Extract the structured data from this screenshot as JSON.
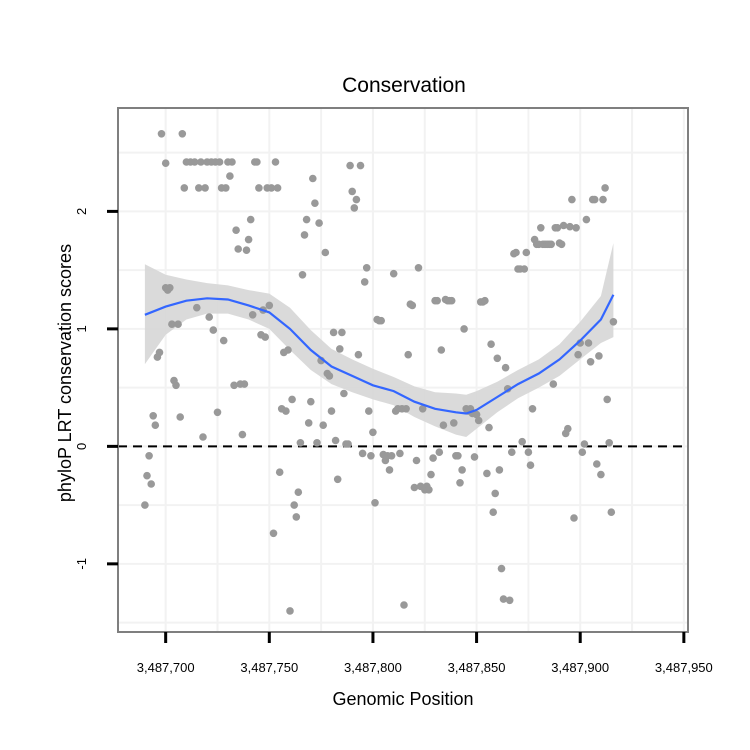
{
  "chart_data": {
    "type": "scatter",
    "title": "Conservation",
    "xlabel": "Genomic Position",
    "ylabel": "phyloP LRT conservation scores",
    "xlim": [
      3487677,
      3487952
    ],
    "ylim": [
      -1.58,
      2.88
    ],
    "x_ticks": [
      3487700,
      3487750,
      3487800,
      3487850,
      3487900,
      3487950
    ],
    "x_tick_labels": [
      "3,487,700",
      "3,487,750",
      "3,487,800",
      "3,487,850",
      "3,487,900",
      "3,487,950"
    ],
    "y_ticks": [
      -1,
      0,
      1,
      2
    ],
    "y_tick_labels": [
      "-1",
      "0",
      "1",
      "2"
    ],
    "reference_line": {
      "y": 0,
      "style": "dashed"
    },
    "grid": true,
    "colors": {
      "points": "#999999",
      "smooth": "#3366ff",
      "band": "#d6d6d6",
      "panel_border": "#7f7f7f",
      "grid": "#f2f2f2"
    },
    "points": [
      [
        3487690,
        -0.5
      ],
      [
        3487691,
        -0.25
      ],
      [
        3487692,
        -0.08
      ],
      [
        3487693,
        -0.32
      ],
      [
        3487694,
        0.26
      ],
      [
        3487695,
        0.18
      ],
      [
        3487696,
        0.76
      ],
      [
        3487697,
        0.8
      ],
      [
        3487698,
        2.66
      ],
      [
        3487700,
        2.41
      ],
      [
        3487700,
        1.35
      ],
      [
        3487701,
        1.33
      ],
      [
        3487702,
        1.35
      ],
      [
        3487703,
        1.04
      ],
      [
        3487704,
        0.56
      ],
      [
        3487705,
        0.52
      ],
      [
        3487706,
        1.04
      ],
      [
        3487707,
        0.25
      ],
      [
        3487708,
        2.66
      ],
      [
        3487709,
        2.2
      ],
      [
        3487710,
        2.42
      ],
      [
        3487712,
        2.42
      ],
      [
        3487714,
        2.42
      ],
      [
        3487715,
        1.18
      ],
      [
        3487716,
        2.2
      ],
      [
        3487717,
        2.42
      ],
      [
        3487718,
        0.08
      ],
      [
        3487719,
        2.2
      ],
      [
        3487720,
        2.42
      ],
      [
        3487721,
        1.1
      ],
      [
        3487722,
        2.42
      ],
      [
        3487723,
        0.99
      ],
      [
        3487724,
        2.42
      ],
      [
        3487725,
        0.29
      ],
      [
        3487726,
        2.42
      ],
      [
        3487727,
        2.2
      ],
      [
        3487728,
        0.9
      ],
      [
        3487729,
        2.2
      ],
      [
        3487730,
        2.42
      ],
      [
        3487731,
        2.3
      ],
      [
        3487732,
        2.42
      ],
      [
        3487733,
        0.52
      ],
      [
        3487734,
        1.84
      ],
      [
        3487735,
        1.68
      ],
      [
        3487736,
        0.53
      ],
      [
        3487737,
        0.1
      ],
      [
        3487738,
        0.53
      ],
      [
        3487739,
        1.67
      ],
      [
        3487740,
        1.76
      ],
      [
        3487741,
        1.93
      ],
      [
        3487742,
        1.12
      ],
      [
        3487743,
        2.42
      ],
      [
        3487744,
        2.42
      ],
      [
        3487745,
        2.2
      ],
      [
        3487746,
        0.95
      ],
      [
        3487747,
        1.16
      ],
      [
        3487748,
        0.93
      ],
      [
        3487749,
        2.2
      ],
      [
        3487750,
        1.2
      ],
      [
        3487751,
        2.2
      ],
      [
        3487752,
        -0.74
      ],
      [
        3487753,
        2.42
      ],
      [
        3487754,
        2.2
      ],
      [
        3487755,
        -0.22
      ],
      [
        3487756,
        0.32
      ],
      [
        3487757,
        0.8
      ],
      [
        3487758,
        0.3
      ],
      [
        3487759,
        0.82
      ],
      [
        3487760,
        -1.4
      ],
      [
        3487761,
        0.4
      ],
      [
        3487762,
        -0.5
      ],
      [
        3487763,
        -0.6
      ],
      [
        3487764,
        -0.39
      ],
      [
        3487765,
        0.03
      ],
      [
        3487766,
        1.46
      ],
      [
        3487767,
        1.8
      ],
      [
        3487768,
        1.93
      ],
      [
        3487769,
        0.2
      ],
      [
        3487770,
        0.38
      ],
      [
        3487771,
        2.28
      ],
      [
        3487772,
        2.07
      ],
      [
        3487773,
        0.03
      ],
      [
        3487774,
        1.9
      ],
      [
        3487775,
        0.73
      ],
      [
        3487776,
        0.18
      ],
      [
        3487777,
        1.65
      ],
      [
        3487778,
        0.62
      ],
      [
        3487779,
        0.6
      ],
      [
        3487780,
        0.3
      ],
      [
        3487781,
        0.97
      ],
      [
        3487782,
        0.05
      ],
      [
        3487783,
        -0.28
      ],
      [
        3487784,
        0.83
      ],
      [
        3487785,
        0.97
      ],
      [
        3487786,
        0.45
      ],
      [
        3487787,
        0.02
      ],
      [
        3487788,
        0.02
      ],
      [
        3487789,
        2.39
      ],
      [
        3487790,
        2.17
      ],
      [
        3487791,
        2.03
      ],
      [
        3487792,
        2.1
      ],
      [
        3487793,
        0.78
      ],
      [
        3487794,
        2.39
      ],
      [
        3487795,
        -0.06
      ],
      [
        3487796,
        1.4
      ],
      [
        3487797,
        1.52
      ],
      [
        3487798,
        0.3
      ],
      [
        3487799,
        -0.08
      ],
      [
        3487800,
        0.12
      ],
      [
        3487801,
        -0.48
      ],
      [
        3487802,
        1.08
      ],
      [
        3487803,
        1.07
      ],
      [
        3487804,
        1.07
      ],
      [
        3487805,
        -0.07
      ],
      [
        3487806,
        -0.12
      ],
      [
        3487807,
        -0.08
      ],
      [
        3487808,
        -0.2
      ],
      [
        3487809,
        -0.08
      ],
      [
        3487810,
        1.47
      ],
      [
        3487811,
        0.3
      ],
      [
        3487812,
        0.32
      ],
      [
        3487813,
        -0.06
      ],
      [
        3487814,
        0.32
      ],
      [
        3487815,
        -1.35
      ],
      [
        3487816,
        0.32
      ],
      [
        3487817,
        0.78
      ],
      [
        3487818,
        1.21
      ],
      [
        3487819,
        1.2
      ],
      [
        3487820,
        -0.35
      ],
      [
        3487821,
        -0.12
      ],
      [
        3487822,
        1.52
      ],
      [
        3487823,
        -0.34
      ],
      [
        3487824,
        0.32
      ],
      [
        3487825,
        -0.37
      ],
      [
        3487826,
        -0.34
      ],
      [
        3487827,
        -0.37
      ],
      [
        3487828,
        -0.24
      ],
      [
        3487829,
        -0.1
      ],
      [
        3487830,
        1.24
      ],
      [
        3487831,
        1.24
      ],
      [
        3487832,
        -0.05
      ],
      [
        3487833,
        0.82
      ],
      [
        3487834,
        0.18
      ],
      [
        3487835,
        1.25
      ],
      [
        3487836,
        1.24
      ],
      [
        3487837,
        1.24
      ],
      [
        3487838,
        1.24
      ],
      [
        3487839,
        0.2
      ],
      [
        3487840,
        -0.08
      ],
      [
        3487841,
        -0.08
      ],
      [
        3487842,
        -0.31
      ],
      [
        3487843,
        -0.2
      ],
      [
        3487844,
        1.0
      ],
      [
        3487845,
        0.32
      ],
      [
        3487846,
        0.3
      ],
      [
        3487847,
        0.32
      ],
      [
        3487848,
        0.28
      ],
      [
        3487849,
        -0.09
      ],
      [
        3487850,
        0.27
      ],
      [
        3487851,
        0.22
      ],
      [
        3487852,
        1.23
      ],
      [
        3487853,
        1.23
      ],
      [
        3487854,
        1.24
      ],
      [
        3487855,
        -0.23
      ],
      [
        3487856,
        0.16
      ],
      [
        3487857,
        0.87
      ],
      [
        3487858,
        -0.56
      ],
      [
        3487859,
        -0.4
      ],
      [
        3487860,
        0.75
      ],
      [
        3487861,
        -0.2
      ],
      [
        3487862,
        -1.04
      ],
      [
        3487863,
        -1.3
      ],
      [
        3487864,
        0.67
      ],
      [
        3487865,
        0.49
      ],
      [
        3487866,
        -1.31
      ],
      [
        3487867,
        -0.05
      ],
      [
        3487868,
        1.64
      ],
      [
        3487869,
        1.65
      ],
      [
        3487870,
        1.51
      ],
      [
        3487871,
        1.51
      ],
      [
        3487872,
        0.04
      ],
      [
        3487873,
        1.51
      ],
      [
        3487874,
        1.65
      ],
      [
        3487875,
        -0.05
      ],
      [
        3487876,
        -0.16
      ],
      [
        3487877,
        0.32
      ],
      [
        3487878,
        1.76
      ],
      [
        3487879,
        1.72
      ],
      [
        3487880,
        1.72
      ],
      [
        3487881,
        1.86
      ],
      [
        3487882,
        1.72
      ],
      [
        3487883,
        1.72
      ],
      [
        3487884,
        1.72
      ],
      [
        3487885,
        1.72
      ],
      [
        3487886,
        1.72
      ],
      [
        3487887,
        0.53
      ],
      [
        3487888,
        1.86
      ],
      [
        3487889,
        1.86
      ],
      [
        3487890,
        1.73
      ],
      [
        3487891,
        1.72
      ],
      [
        3487892,
        1.88
      ],
      [
        3487893,
        0.11
      ],
      [
        3487894,
        0.15
      ],
      [
        3487895,
        1.87
      ],
      [
        3487896,
        2.1
      ],
      [
        3487897,
        -0.61
      ],
      [
        3487898,
        1.86
      ],
      [
        3487899,
        0.78
      ],
      [
        3487900,
        0.88
      ],
      [
        3487901,
        -0.05
      ],
      [
        3487902,
        0.02
      ],
      [
        3487903,
        1.93
      ],
      [
        3487904,
        0.88
      ],
      [
        3487905,
        0.72
      ],
      [
        3487906,
        2.1
      ],
      [
        3487907,
        2.1
      ],
      [
        3487908,
        -0.15
      ],
      [
        3487909,
        0.77
      ],
      [
        3487910,
        -0.24
      ],
      [
        3487911,
        2.1
      ],
      [
        3487912,
        2.2
      ],
      [
        3487913,
        0.4
      ],
      [
        3487914,
        0.03
      ],
      [
        3487915,
        -0.56
      ],
      [
        3487916,
        1.06
      ]
    ],
    "smooth_fit": {
      "x": [
        3487690,
        3487700,
        3487710,
        3487720,
        3487730,
        3487740,
        3487750,
        3487760,
        3487770,
        3487780,
        3487790,
        3487800,
        3487810,
        3487820,
        3487830,
        3487840,
        3487845,
        3487850,
        3487860,
        3487870,
        3487880,
        3487890,
        3487900,
        3487910,
        3487916
      ],
      "y": [
        1.12,
        1.19,
        1.24,
        1.26,
        1.25,
        1.2,
        1.14,
        1.0,
        0.82,
        0.68,
        0.6,
        0.52,
        0.47,
        0.38,
        0.32,
        0.29,
        0.28,
        0.31,
        0.42,
        0.53,
        0.62,
        0.74,
        0.9,
        1.08,
        1.29
      ],
      "lower": [
        0.7,
        0.95,
        1.08,
        1.13,
        1.13,
        1.08,
        1.0,
        0.82,
        0.65,
        0.53,
        0.46,
        0.4,
        0.35,
        0.25,
        0.17,
        0.1,
        0.08,
        0.15,
        0.29,
        0.41,
        0.5,
        0.6,
        0.74,
        0.88,
        0.93
      ],
      "upper": [
        1.55,
        1.46,
        1.42,
        1.39,
        1.37,
        1.33,
        1.3,
        1.18,
        0.99,
        0.83,
        0.74,
        0.66,
        0.59,
        0.51,
        0.46,
        0.45,
        0.44,
        0.47,
        0.55,
        0.65,
        0.74,
        0.87,
        1.06,
        1.28,
        1.73
      ]
    }
  }
}
